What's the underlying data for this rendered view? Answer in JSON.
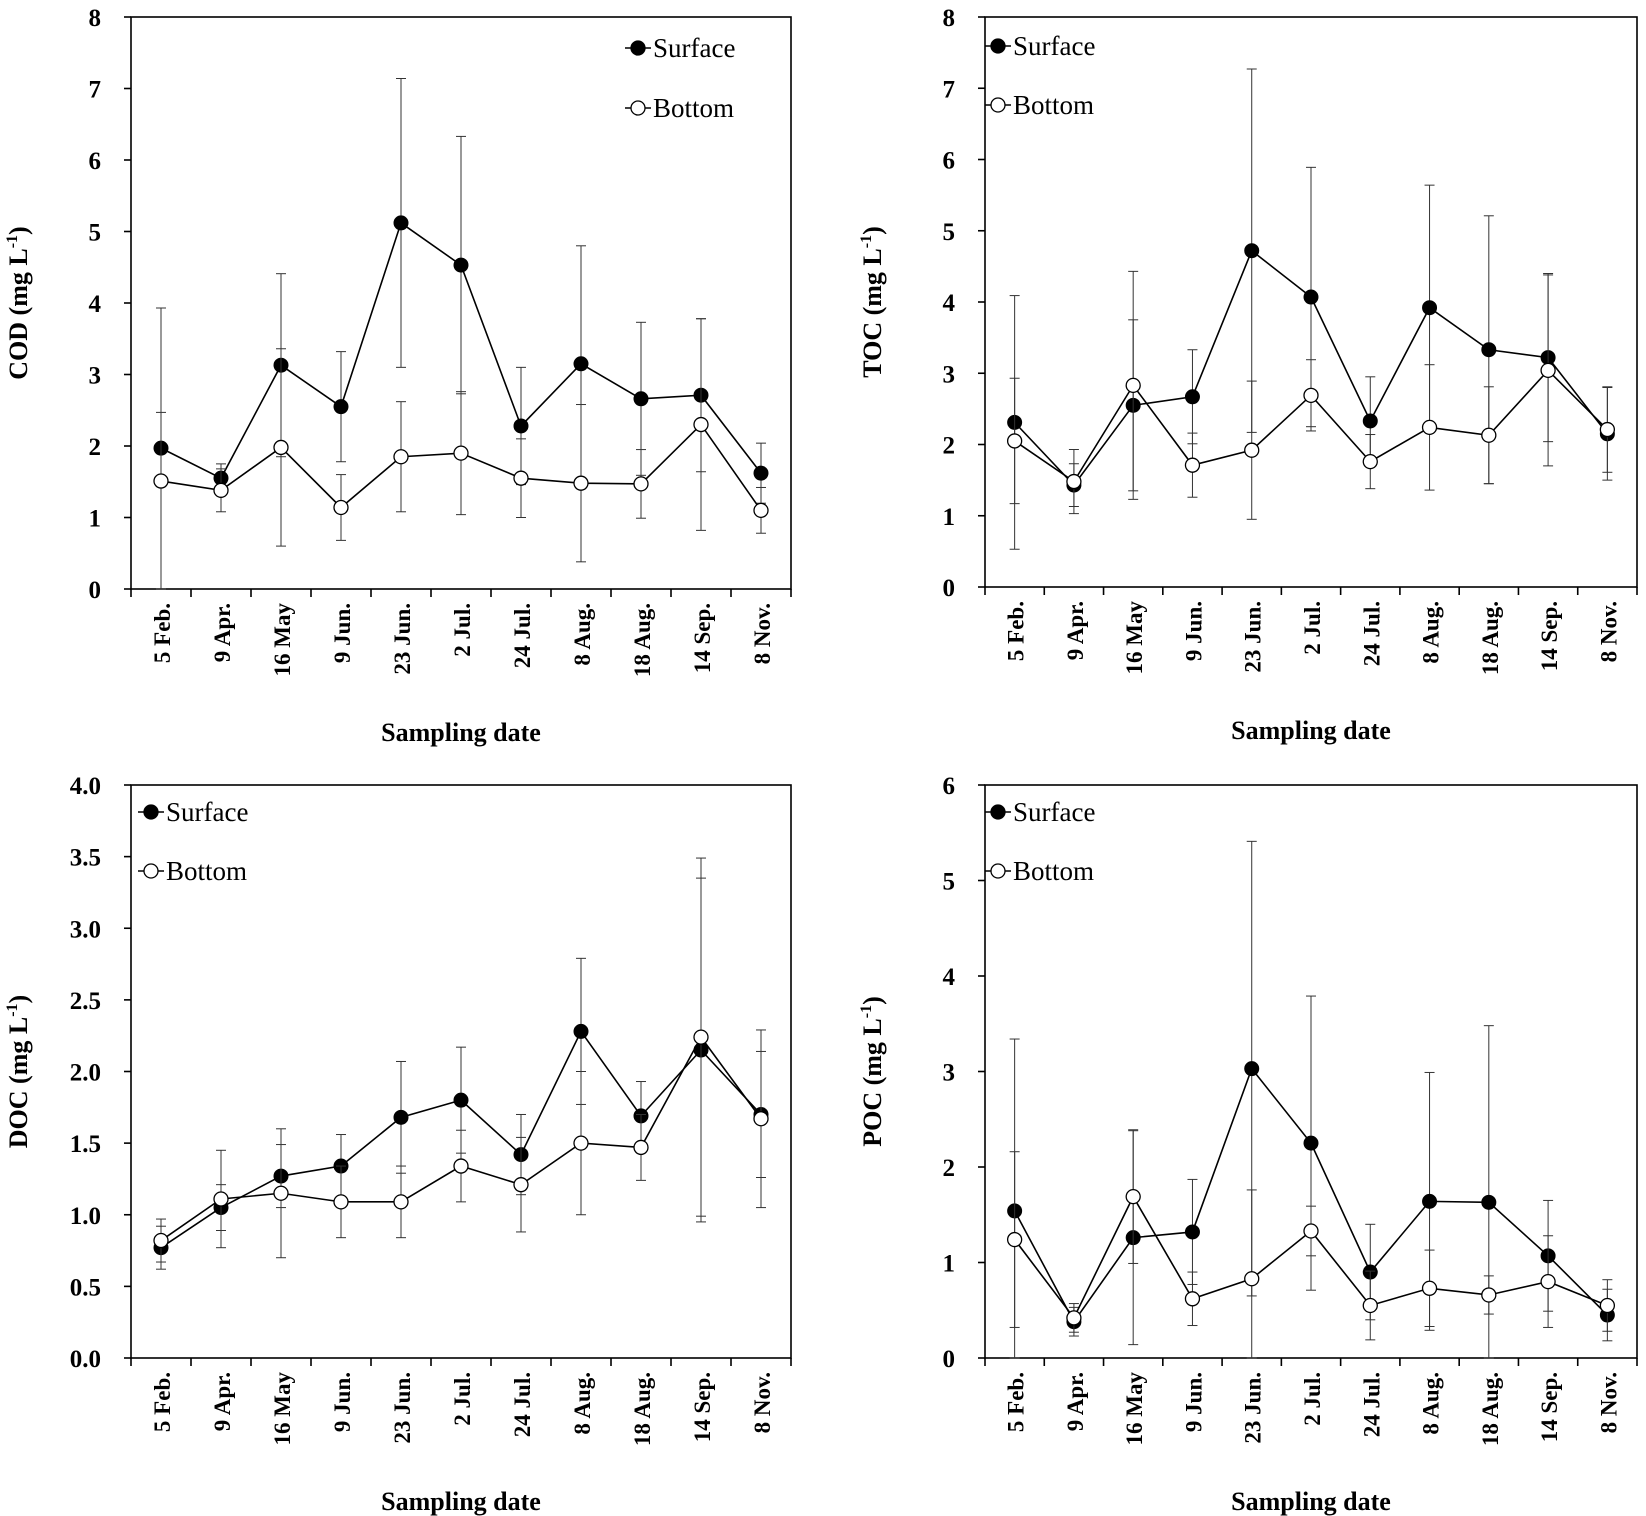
{
  "chart_data": [
    {
      "type": "line",
      "panel": "top-left",
      "title": "",
      "xlabel": "Sampling date",
      "ylabel": "COD (mg L",
      "ylabel_sup": "-1",
      "ylabel_close": ")",
      "ylim": [
        0,
        8
      ],
      "yticks": [
        "0",
        "1",
        "2",
        "3",
        "4",
        "5",
        "6",
        "7",
        "8"
      ],
      "ytick_values": [
        0,
        1,
        2,
        3,
        4,
        5,
        6,
        7,
        8
      ],
      "categories": [
        "5 Feb.",
        "9 Apr.",
        "16 May",
        "9 Jun.",
        "23 Jun.",
        "2 Jul.",
        "24 Jul.",
        "8 Aug.",
        "18 Aug.",
        "14 Sep.",
        "8 Nov."
      ],
      "legend_position": "top-right",
      "series": [
        {
          "name": "Surface",
          "marker": "filled",
          "values": [
            1.97,
            1.55,
            3.13,
            2.55,
            5.12,
            4.53,
            2.28,
            3.15,
            2.66,
            2.71,
            1.62
          ],
          "errors": [
            0.5,
            0.2,
            1.28,
            0.77,
            2.02,
            1.8,
            0.82,
            1.65,
            1.07,
            1.07,
            0.42
          ]
        },
        {
          "name": "Bottom",
          "marker": "open",
          "values": [
            1.51,
            1.38,
            1.98,
            1.14,
            1.85,
            1.9,
            1.55,
            1.48,
            1.47,
            2.3,
            1.1
          ],
          "errors": [
            2.42,
            0.3,
            1.38,
            0.46,
            0.77,
            0.86,
            0.55,
            1.1,
            0.48,
            1.48,
            0.32
          ]
        }
      ]
    },
    {
      "type": "line",
      "panel": "top-right",
      "title": "",
      "xlabel": "Sampling date",
      "ylabel": "TOC (mg L",
      "ylabel_sup": "-1",
      "ylabel_close": ")",
      "ylim": [
        0,
        8
      ],
      "yticks": [
        "0",
        "1",
        "2",
        "3",
        "4",
        "5",
        "6",
        "7",
        "8"
      ],
      "ytick_values": [
        0,
        1,
        2,
        3,
        4,
        5,
        6,
        7,
        8
      ],
      "categories": [
        "5 Feb.",
        "9 Apr.",
        "16 May",
        "9 Jun.",
        "23 Jun.",
        "2 Jul.",
        "24 Jul.",
        "8 Aug.",
        "18 Aug.",
        "14 Sep.",
        "8 Nov."
      ],
      "legend_position": "top-left",
      "series": [
        {
          "name": "Surface",
          "marker": "filled",
          "values": [
            2.31,
            1.43,
            2.55,
            2.67,
            4.72,
            4.07,
            2.33,
            3.92,
            3.33,
            3.22,
            2.15
          ],
          "errors": [
            1.78,
            0.3,
            1.2,
            0.66,
            2.55,
            1.82,
            0.62,
            1.72,
            1.88,
            1.18,
            0.65
          ]
        },
        {
          "name": "Bottom",
          "marker": "open",
          "values": [
            2.05,
            1.48,
            2.83,
            1.71,
            1.92,
            2.69,
            1.76,
            2.24,
            2.13,
            3.04,
            2.21
          ],
          "errors": [
            0.88,
            0.45,
            1.6,
            0.45,
            0.97,
            0.5,
            0.38,
            0.88,
            0.68,
            1.34,
            0.6
          ]
        }
      ]
    },
    {
      "type": "line",
      "panel": "bottom-left",
      "title": "",
      "xlabel": "Sampling date",
      "ylabel": "DOC (mg L",
      "ylabel_sup": "-1",
      "ylabel_close": ")",
      "ylim": [
        0,
        4
      ],
      "yticks": [
        "0.0",
        "0.5",
        "1.0",
        "1.5",
        "2.0",
        "2.5",
        "3.0",
        "3.5",
        "4.0"
      ],
      "ytick_values": [
        0,
        0.5,
        1,
        1.5,
        2,
        2.5,
        3,
        3.5,
        4
      ],
      "categories": [
        "5 Feb.",
        "9 Apr.",
        "16 May",
        "9 Jun.",
        "23 Jun.",
        "2 Jul.",
        "24 Jul.",
        "8 Aug.",
        "18 Aug.",
        "14 Sep.",
        "8 Nov."
      ],
      "legend_position": "top-left",
      "series": [
        {
          "name": "Surface",
          "marker": "filled",
          "values": [
            0.77,
            1.05,
            1.27,
            1.34,
            1.68,
            1.8,
            1.42,
            2.28,
            1.69,
            2.15,
            1.7
          ],
          "errors": [
            0.15,
            0.16,
            0.22,
            0.22,
            0.39,
            0.37,
            0.28,
            0.51,
            0.24,
            1.2,
            0.44
          ]
        },
        {
          "name": "Bottom",
          "marker": "open",
          "values": [
            0.82,
            1.11,
            1.15,
            1.09,
            1.09,
            1.34,
            1.21,
            1.5,
            1.47,
            2.24,
            1.67
          ],
          "errors": [
            0.15,
            0.34,
            0.45,
            0.25,
            0.25,
            0.25,
            0.33,
            0.5,
            0.23,
            1.25,
            0.62
          ]
        }
      ]
    },
    {
      "type": "line",
      "panel": "bottom-right",
      "title": "",
      "xlabel": "Sampling date",
      "ylabel": "POC (mg L",
      "ylabel_sup": "-1",
      "ylabel_close": ")",
      "ylim": [
        0,
        6
      ],
      "yticks": [
        "0",
        "1",
        "2",
        "3",
        "4",
        "5",
        "6"
      ],
      "ytick_values": [
        0,
        1,
        2,
        3,
        4,
        5,
        6
      ],
      "categories": [
        "5 Feb.",
        "9 Apr.",
        "16 May",
        "9 Jun.",
        "23 Jun.",
        "2 Jul.",
        "24 Jul.",
        "8 Aug.",
        "18 Aug.",
        "14 Sep.",
        "8 Nov."
      ],
      "legend_position": "top-left",
      "series": [
        {
          "name": "Surface",
          "marker": "filled",
          "values": [
            1.54,
            0.38,
            1.26,
            1.32,
            3.03,
            2.25,
            0.9,
            1.64,
            1.63,
            1.07,
            0.45
          ],
          "errors": [
            1.8,
            0.15,
            1.12,
            0.55,
            2.38,
            1.54,
            0.5,
            1.35,
            1.85,
            0.58,
            0.27
          ]
        },
        {
          "name": "Bottom",
          "marker": "open",
          "values": [
            1.24,
            0.42,
            1.69,
            0.62,
            0.83,
            1.33,
            0.55,
            0.73,
            0.66,
            0.8,
            0.55
          ],
          "errors": [
            0.92,
            0.15,
            0.7,
            0.28,
            0.93,
            0.26,
            0.36,
            0.4,
            0.2,
            0.48,
            0.27
          ]
        }
      ]
    }
  ]
}
